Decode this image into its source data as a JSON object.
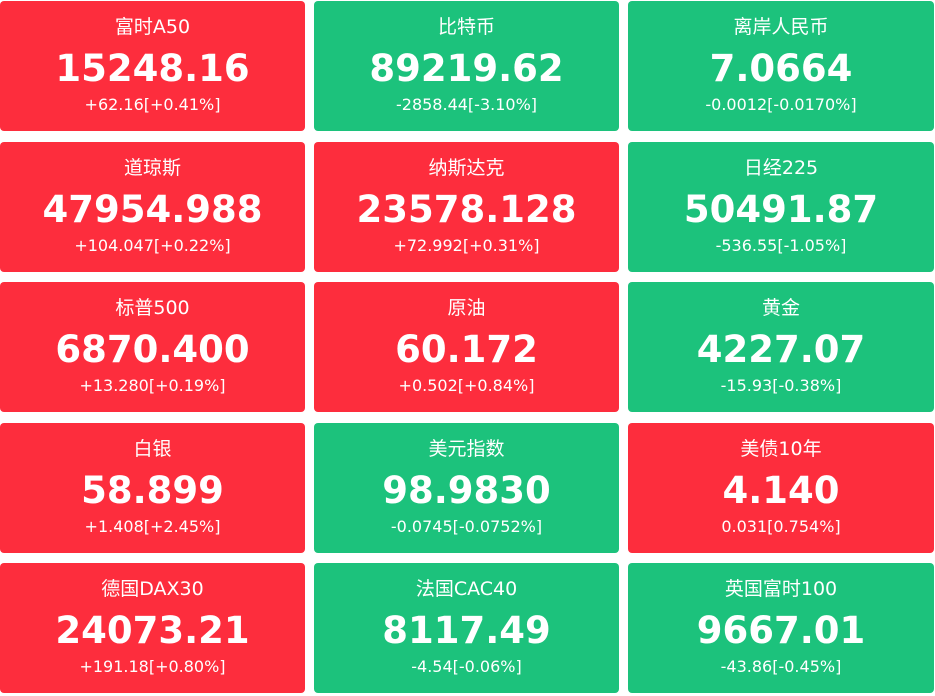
{
  "colors": {
    "up": "#fd2d3d",
    "down": "#1cc27c"
  },
  "tiles": [
    {
      "name": "富时A50",
      "value": "15248.16",
      "change": "+62.16[+0.41%]",
      "trend": "up"
    },
    {
      "name": "比特币",
      "value": "89219.62",
      "change": "-2858.44[-3.10%]",
      "trend": "down"
    },
    {
      "name": "离岸人民币",
      "value": "7.0664",
      "change": "-0.0012[-0.0170%]",
      "trend": "down"
    },
    {
      "name": "道琼斯",
      "value": "47954.988",
      "change": "+104.047[+0.22%]",
      "trend": "up"
    },
    {
      "name": "纳斯达克",
      "value": "23578.128",
      "change": "+72.992[+0.31%]",
      "trend": "up"
    },
    {
      "name": "日经225",
      "value": "50491.87",
      "change": "-536.55[-1.05%]",
      "trend": "down"
    },
    {
      "name": "标普500",
      "value": "6870.400",
      "change": "+13.280[+0.19%]",
      "trend": "up"
    },
    {
      "name": "原油",
      "value": "60.172",
      "change": "+0.502[+0.84%]",
      "trend": "up"
    },
    {
      "name": "黄金",
      "value": "4227.07",
      "change": "-15.93[-0.38%]",
      "trend": "down"
    },
    {
      "name": "白银",
      "value": "58.899",
      "change": "+1.408[+2.45%]",
      "trend": "up"
    },
    {
      "name": "美元指数",
      "value": "98.9830",
      "change": "-0.0745[-0.0752%]",
      "trend": "down"
    },
    {
      "name": "美债10年",
      "value": "4.140",
      "change": "0.031[0.754%]",
      "trend": "up"
    },
    {
      "name": "德国DAX30",
      "value": "24073.21",
      "change": "+191.18[+0.80%]",
      "trend": "up"
    },
    {
      "name": "法国CAC40",
      "value": "8117.49",
      "change": "-4.54[-0.06%]",
      "trend": "down"
    },
    {
      "name": "英国富时100",
      "value": "9667.01",
      "change": "-43.86[-0.45%]",
      "trend": "down"
    }
  ]
}
